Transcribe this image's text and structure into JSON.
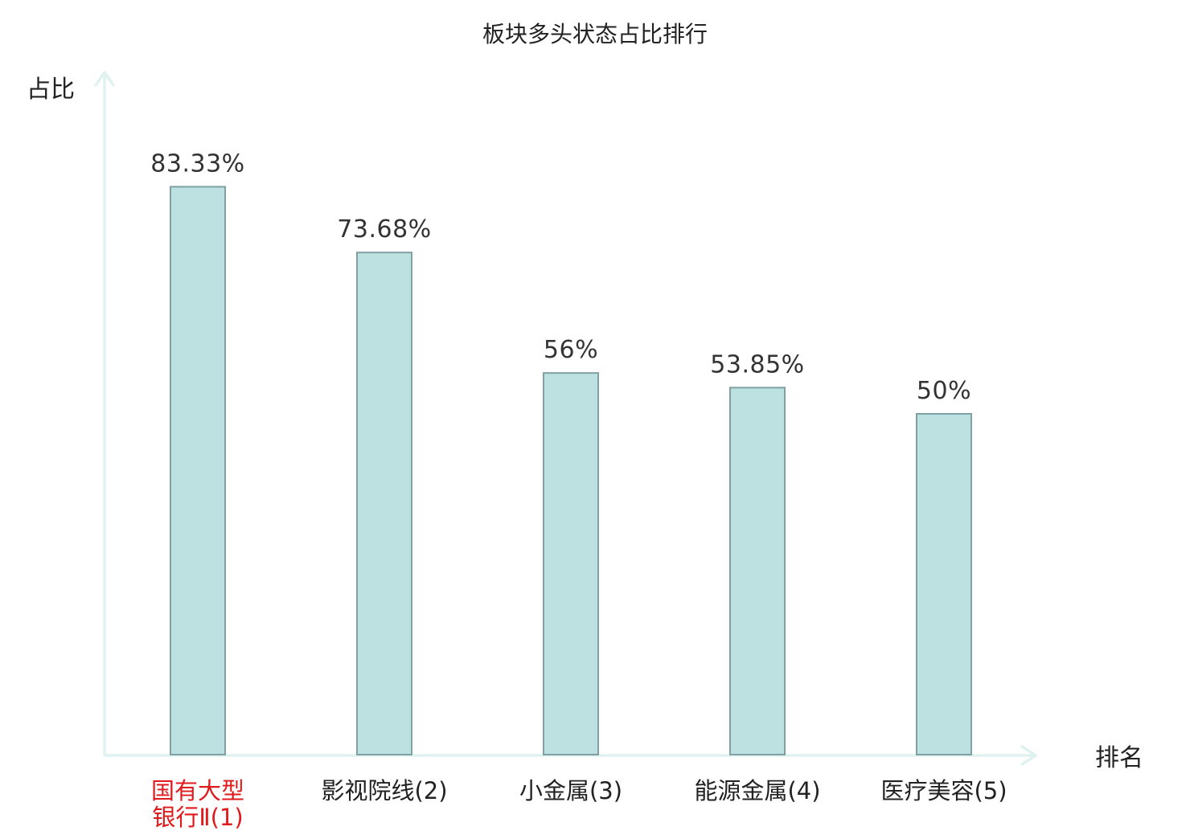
{
  "chart_data": {
    "type": "bar",
    "title": "板块多头状态占比排行",
    "xlabel": "排名",
    "ylabel": "占比",
    "categories": [
      [
        "国有大型",
        "银行Ⅱ(1)"
      ],
      [
        "影视院线(2)"
      ],
      [
        "小金属(3)"
      ],
      [
        "能源金属(4)"
      ],
      [
        "医疗美容(5)"
      ]
    ],
    "values": [
      83.33,
      73.68,
      56,
      53.85,
      50
    ],
    "value_labels": [
      "83.33%",
      "73.68%",
      "56%",
      "53.85%",
      "50%"
    ],
    "value_unit": "%",
    "ylim": [
      0,
      100
    ],
    "grid": false,
    "highlight_index": 0,
    "colors": {
      "bar_fill": "#bde0e1",
      "bar_stroke": "#7fa1a3",
      "axis": "#dff2ef",
      "highlight_text": "#e0191b",
      "text": "#222222"
    }
  }
}
